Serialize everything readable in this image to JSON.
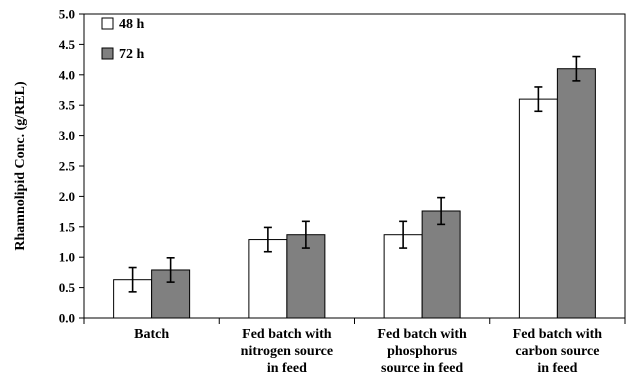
{
  "chart_data": {
    "type": "bar",
    "title": "",
    "xlabel": "",
    "ylabel": "Rhamnolipid Conc. (g/REL)",
    "ylim": [
      0,
      5.0
    ],
    "yticks": [
      "0.0",
      "0.5",
      "1.0",
      "1.5",
      "2.0",
      "2.5",
      "3.0",
      "3.5",
      "4.0",
      "4.5",
      "5.0"
    ],
    "categories": [
      [
        "Batch"
      ],
      [
        "Fed batch with",
        "nitrogen source",
        "in feed"
      ],
      [
        "Fed batch with",
        "phosphorus",
        "source in feed"
      ],
      [
        "Fed batch with",
        "carbon source",
        "in feed"
      ]
    ],
    "series": [
      {
        "name": "48 h",
        "values": [
          0.63,
          1.29,
          1.37,
          3.6
        ],
        "errors": [
          0.2,
          0.2,
          0.22,
          0.2
        ],
        "color": "#ffffff"
      },
      {
        "name": "72 h",
        "values": [
          0.79,
          1.37,
          1.76,
          4.1
        ],
        "errors": [
          0.2,
          0.22,
          0.22,
          0.2
        ],
        "color": "#808080"
      }
    ],
    "grid": false,
    "legend_position": "top-left"
  }
}
